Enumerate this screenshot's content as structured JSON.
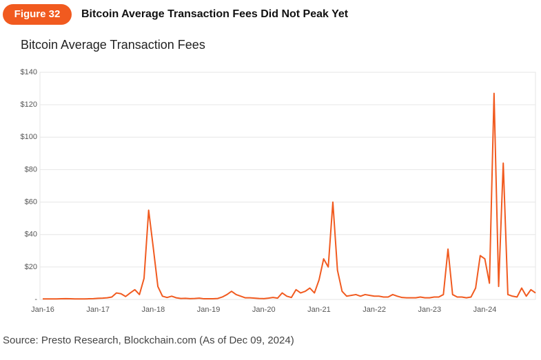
{
  "figure_label": "Figure 32",
  "heading": "Bitcoin Average Transaction Fees Did Not Peak Yet",
  "source": "Source: Presto Research, Blockchain.com (As of Dec 09, 2024)",
  "chart_data": {
    "type": "line",
    "title": "Bitcoin Average Transaction Fees",
    "x": [
      "Jan-16",
      "Feb-16",
      "Mar-16",
      "Apr-16",
      "May-16",
      "Jun-16",
      "Jul-16",
      "Aug-16",
      "Sep-16",
      "Oct-16",
      "Nov-16",
      "Dec-16",
      "Jan-17",
      "Feb-17",
      "Mar-17",
      "Apr-17",
      "May-17",
      "Jun-17",
      "Jul-17",
      "Aug-17",
      "Sep-17",
      "Oct-17",
      "Nov-17",
      "Dec-17",
      "Jan-18",
      "Feb-18",
      "Mar-18",
      "Apr-18",
      "May-18",
      "Jun-18",
      "Jul-18",
      "Aug-18",
      "Sep-18",
      "Oct-18",
      "Nov-18",
      "Dec-18",
      "Jan-19",
      "Feb-19",
      "Mar-19",
      "Apr-19",
      "May-19",
      "Jun-19",
      "Jul-19",
      "Aug-19",
      "Sep-19",
      "Oct-19",
      "Nov-19",
      "Dec-19",
      "Jan-20",
      "Feb-20",
      "Mar-20",
      "Apr-20",
      "May-20",
      "Jun-20",
      "Jul-20",
      "Aug-20",
      "Sep-20",
      "Oct-20",
      "Nov-20",
      "Dec-20",
      "Jan-21",
      "Feb-21",
      "Mar-21",
      "Apr-21",
      "May-21",
      "Jun-21",
      "Jul-21",
      "Aug-21",
      "Sep-21",
      "Oct-21",
      "Nov-21",
      "Dec-21",
      "Jan-22",
      "Feb-22",
      "Mar-22",
      "Apr-22",
      "May-22",
      "Jun-22",
      "Jul-22",
      "Aug-22",
      "Sep-22",
      "Oct-22",
      "Nov-22",
      "Dec-22",
      "Jan-23",
      "Feb-23",
      "Mar-23",
      "Apr-23",
      "May-23",
      "Jun-23",
      "Jul-23",
      "Aug-23",
      "Sep-23",
      "Oct-23",
      "Nov-23",
      "Dec-23",
      "Jan-24",
      "Feb-24",
      "Mar-24",
      "Apr-24",
      "May-24",
      "Jun-24",
      "Jul-24",
      "Aug-24",
      "Sep-24",
      "Oct-24",
      "Nov-24",
      "Dec-24"
    ],
    "xtick_every": 12,
    "series": [
      {
        "name": "Average Transaction Fee",
        "color": "#f15a1f",
        "values": [
          0.3,
          0.3,
          0.3,
          0.3,
          0.4,
          0.5,
          0.4,
          0.3,
          0.3,
          0.3,
          0.4,
          0.5,
          0.7,
          0.8,
          1,
          1.5,
          4,
          3.5,
          1.8,
          4,
          6,
          3,
          13,
          55,
          32,
          8,
          2,
          1.2,
          2,
          1,
          0.6,
          0.7,
          0.5,
          0.6,
          0.8,
          0.4,
          0.4,
          0.4,
          0.6,
          1.5,
          3,
          5,
          3,
          2,
          1,
          1,
          0.8,
          0.6,
          0.5,
          0.8,
          1.2,
          0.8,
          4,
          2,
          1.2,
          6,
          4,
          5,
          7,
          4,
          12,
          25,
          20,
          60,
          18,
          5,
          2,
          2.5,
          3,
          2,
          3,
          2.5,
          2,
          2,
          1.5,
          1.5,
          3,
          2,
          1.2,
          1,
          1,
          1,
          1.5,
          1,
          1,
          1.5,
          1.5,
          3,
          31,
          3,
          1.5,
          1.5,
          1,
          1.5,
          7,
          27,
          25,
          10,
          127,
          8,
          84,
          3,
          2,
          1.5,
          7,
          2,
          6,
          4
        ]
      }
    ],
    "ylim": [
      0,
      140
    ],
    "yticks": [
      {
        "value": 0,
        "label": "-"
      },
      {
        "value": 20,
        "label": "$20"
      },
      {
        "value": 40,
        "label": "$40"
      },
      {
        "value": 60,
        "label": "$60"
      },
      {
        "value": 80,
        "label": "$80"
      },
      {
        "value": 100,
        "label": "$100"
      },
      {
        "value": 120,
        "label": "$120"
      },
      {
        "value": 140,
        "label": "$140"
      }
    ],
    "grid": true
  }
}
